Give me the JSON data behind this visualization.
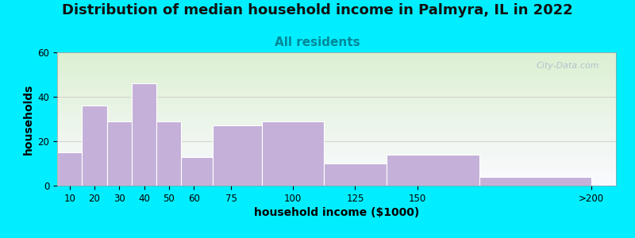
{
  "title": "Distribution of median household income in Palmyra, IL in 2022",
  "subtitle": "All residents",
  "xlabel": "household income ($1000)",
  "ylabel": "households",
  "tick_positions": [
    10,
    20,
    30,
    40,
    50,
    60,
    75,
    100,
    125,
    150,
    220
  ],
  "tick_labels": [
    "10",
    "20",
    "30",
    "40",
    "50",
    "60",
    "75",
    "100",
    "125",
    "150",
    ">200"
  ],
  "bar_lefts": [
    5,
    15,
    25,
    35,
    45,
    55,
    67.5,
    87.5,
    112.5,
    137.5,
    175
  ],
  "bar_widths": [
    10,
    10,
    10,
    10,
    10,
    12.5,
    20,
    25,
    25,
    37.5,
    45
  ],
  "bar_values": [
    15,
    36,
    29,
    46,
    29,
    13,
    27,
    29,
    10,
    14,
    4
  ],
  "bar_color": "#c4b0d8",
  "bar_edgecolor": "#ffffff",
  "ylim": [
    0,
    60
  ],
  "xlim": [
    5,
    230
  ],
  "yticks": [
    0,
    20,
    40,
    60
  ],
  "background_color": "#00eeff",
  "title_fontsize": 13,
  "subtitle_fontsize": 11,
  "subtitle_color": "#008899",
  "axis_label_fontsize": 10,
  "watermark_text": "City-Data.com",
  "watermark_color": "#aabbcc",
  "title_color": "#111111"
}
